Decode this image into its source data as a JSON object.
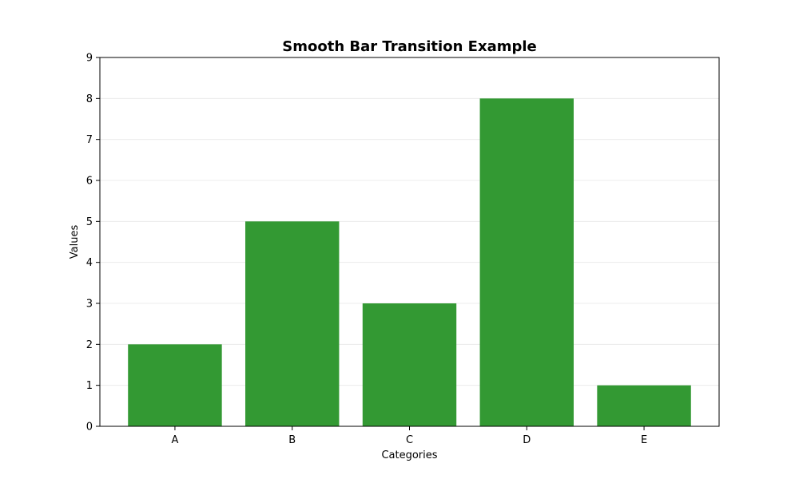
{
  "chart_data": {
    "type": "bar",
    "title": "Smooth Bar Transition Example",
    "xlabel": "Categories",
    "ylabel": "Values",
    "categories": [
      "A",
      "B",
      "C",
      "D",
      "E"
    ],
    "values": [
      2,
      5,
      3,
      8,
      1
    ],
    "ylim": [
      0,
      9
    ],
    "yticks": [
      0,
      1,
      2,
      3,
      4,
      5,
      6,
      7,
      8,
      9
    ],
    "grid": "horizontal",
    "legend": "none",
    "bar_color": "#339933"
  }
}
